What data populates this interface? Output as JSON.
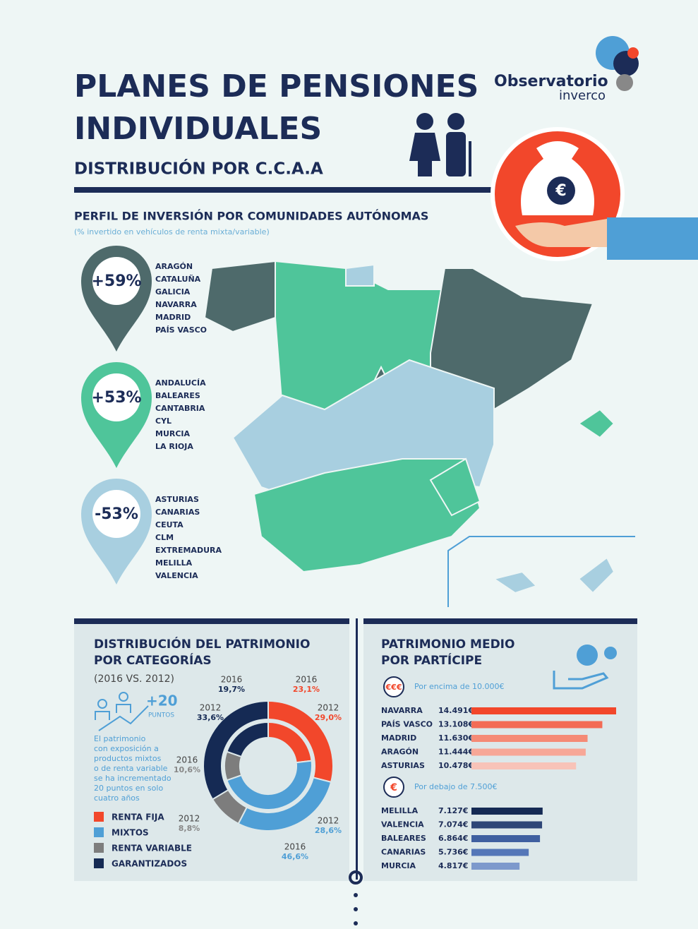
{
  "header": {
    "title_lines": [
      "PLANES DE PENSIONES",
      "INDIVIDUALES"
    ],
    "subtitle": "DISTRIBUCIÓN POR C.C.A.A",
    "logo_main": "Observatorio",
    "logo_sub": "inverco"
  },
  "profile": {
    "title": "PERFIL DE INVERSIÓN POR COMUNIDADES AUTÓNOMAS",
    "note": "(% invertido en vehículos de renta mixta/variable)",
    "groups": [
      {
        "label": "+59%",
        "regions": [
          "ARAGÓN",
          "CATALUÑA",
          "GALICIA",
          "NAVARRA",
          "MADRID",
          "PAÍS VASCO"
        ]
      },
      {
        "label": "+53%",
        "regions": [
          "ANDALUCÍA",
          "BALEARES",
          "CANTABRIA",
          "CYL",
          "MURCIA",
          "LA RIOJA"
        ]
      },
      {
        "label": "-53%",
        "regions": [
          "ASTURIAS",
          "CANARIAS",
          "CEUTA",
          "CLM",
          "EXTREMADURA",
          "MELILLA",
          "VALENCIA"
        ]
      }
    ]
  },
  "distribution": {
    "title_lines": [
      "DISTRIBUCIÓN DEL PATRIMONIO",
      "POR CATEGORÍAS"
    ],
    "period": "(2016 VS. 2012)",
    "points": "+20",
    "points_unit": "PUNTOS",
    "text_lines": [
      "El patrimonio",
      "con exposición a",
      "productos mixtos",
      "o de renta variable",
      "se ha incrementado",
      "20 puntos en solo",
      "cuatro años"
    ],
    "categories": [
      "RENTA FIJA",
      "MIXTOS",
      "RENTA VARIABLE",
      "GARANTIZADOS"
    ],
    "colors": [
      "#f2472b",
      "#4f9fd6",
      "#7d7d7d",
      "#152a54"
    ],
    "series": [
      {
        "name": "2012",
        "values": [
          29.0,
          28.6,
          8.8,
          33.6
        ],
        "value_labels": [
          "29,0%",
          "28,6%",
          "8,8%",
          "33,6%"
        ]
      },
      {
        "name": "2016",
        "values": [
          23.1,
          46.6,
          10.6,
          19.7
        ],
        "value_labels": [
          "23,1%",
          "46,6%",
          "10,6%",
          "19,7%"
        ]
      }
    ]
  },
  "patrimonio": {
    "title_lines": [
      "PATRIMONIO MEDIO",
      "POR PARTÍCIPE"
    ],
    "above": {
      "icon": "€€€",
      "label": "Por encima de 10.000€",
      "rows": [
        {
          "name": "NAVARRA",
          "value": 14491,
          "value_label": "14.491€"
        },
        {
          "name": "PAÍS VASCO",
          "value": 13108,
          "value_label": "13.108€"
        },
        {
          "name": "MADRID",
          "value": 11630,
          "value_label": "11.630€"
        },
        {
          "name": "ARAGÓN",
          "value": 11444,
          "value_label": "11.444€"
        },
        {
          "name": "ASTURIAS",
          "value": 10478,
          "value_label": "10.478€"
        }
      ]
    },
    "below": {
      "icon": "€",
      "label": "Por debajo de 7.500€",
      "rows": [
        {
          "name": "MELILLA",
          "value": 7127,
          "value_label": "7.127€"
        },
        {
          "name": "VALENCIA",
          "value": 7074,
          "value_label": "7.074€"
        },
        {
          "name": "BALEARES",
          "value": 6864,
          "value_label": "6.864€"
        },
        {
          "name": "CANARIAS",
          "value": 5736,
          "value_label": "5.736€"
        },
        {
          "name": "MURCIA",
          "value": 4817,
          "value_label": "4.817€"
        }
      ]
    }
  }
}
